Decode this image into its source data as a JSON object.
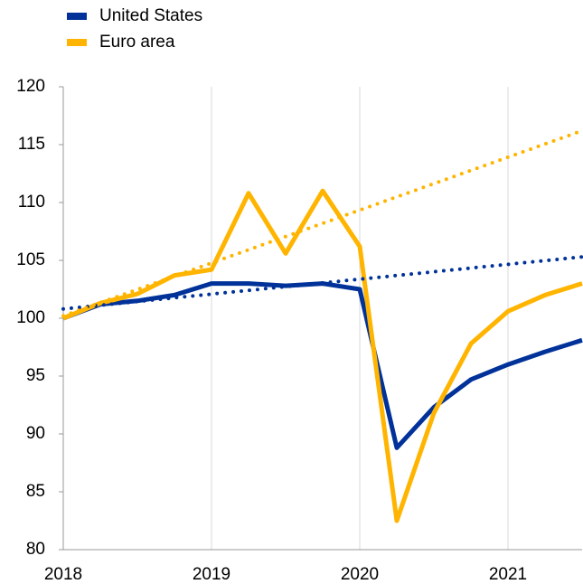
{
  "chart_data": {
    "type": "line",
    "x": [
      2018,
      2018.25,
      2018.5,
      2018.75,
      2019,
      2019.25,
      2019.5,
      2019.75,
      2020,
      2020.25,
      2020.5,
      2020.75,
      2021,
      2021.25,
      2021.5
    ],
    "series": [
      {
        "name": "United States",
        "color": "#003299",
        "values": [
          100,
          101.2,
          101.5,
          102,
          103,
          103,
          102.8,
          103,
          102.5,
          88.8,
          92.3,
          94.7,
          96,
          97.1,
          98.1
        ]
      },
      {
        "name": "Euro area",
        "color": "#ffb400",
        "values": [
          100,
          101.3,
          102.1,
          103.7,
          104.2,
          110.8,
          105.6,
          111,
          106.2,
          82.5,
          91.8,
          97.8,
          100.6,
          102,
          103
        ]
      },
      {
        "color": "#003299",
        "style": "dotted",
        "x": [
          2018,
          2021.5
        ],
        "values": [
          100.8,
          105.3
        ]
      },
      {
        "color": "#ffb400",
        "style": "dotted",
        "x": [
          2018,
          2021.5
        ],
        "values": [
          100.2,
          116.2
        ]
      }
    ],
    "xlim": [
      2018,
      2021.5
    ],
    "xticks": [
      2018,
      2019,
      2020,
      2021
    ],
    "ylim": [
      80,
      120
    ],
    "yticks": [
      80,
      85,
      90,
      95,
      100,
      105,
      110,
      115,
      120
    ],
    "grid": true,
    "legend": "top-left"
  }
}
